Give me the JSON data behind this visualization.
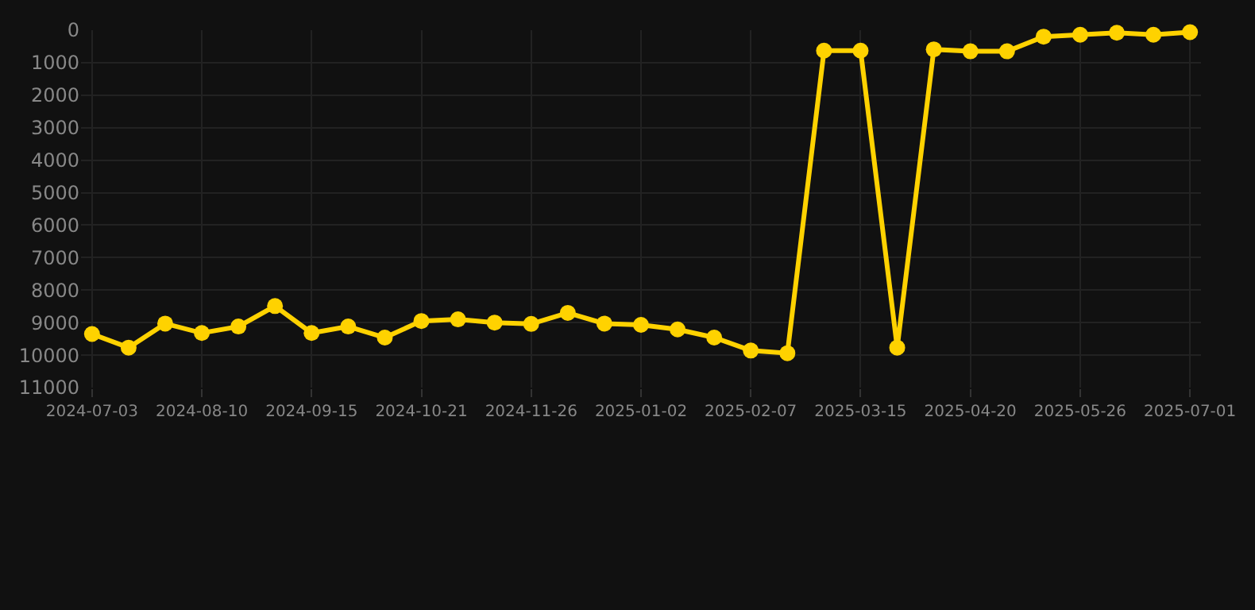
{
  "chart_data": {
    "type": "line",
    "categories": [
      "2024-07-03",
      null,
      null,
      "2024-08-10",
      null,
      null,
      "2024-09-15",
      null,
      null,
      "2024-10-21",
      null,
      null,
      "2024-11-26",
      null,
      null,
      "2025-01-02",
      null,
      null,
      "2025-02-07",
      null,
      null,
      "2025-03-15",
      null,
      null,
      "2025-04-20",
      null,
      null,
      "2025-05-26",
      null,
      null,
      "2025-07-01"
    ],
    "series": [
      {
        "color": "#ffd200",
        "values": [
          9350,
          9770,
          9030,
          9320,
          9120,
          8490,
          9320,
          9120,
          9460,
          8950,
          8900,
          9000,
          9040,
          8700,
          9030,
          9070,
          9210,
          9460,
          9860,
          9940,
          630,
          630,
          9770,
          590,
          650,
          650,
          200,
          140,
          80,
          140,
          60
        ]
      }
    ],
    "ylim": [
      11000,
      0
    ],
    "yticks": [
      0,
      1000,
      2000,
      3000,
      4000,
      5000,
      6000,
      7000,
      8000,
      9000,
      10000,
      11000
    ],
    "grid": true,
    "marker": "circle",
    "line_style": "solid"
  }
}
